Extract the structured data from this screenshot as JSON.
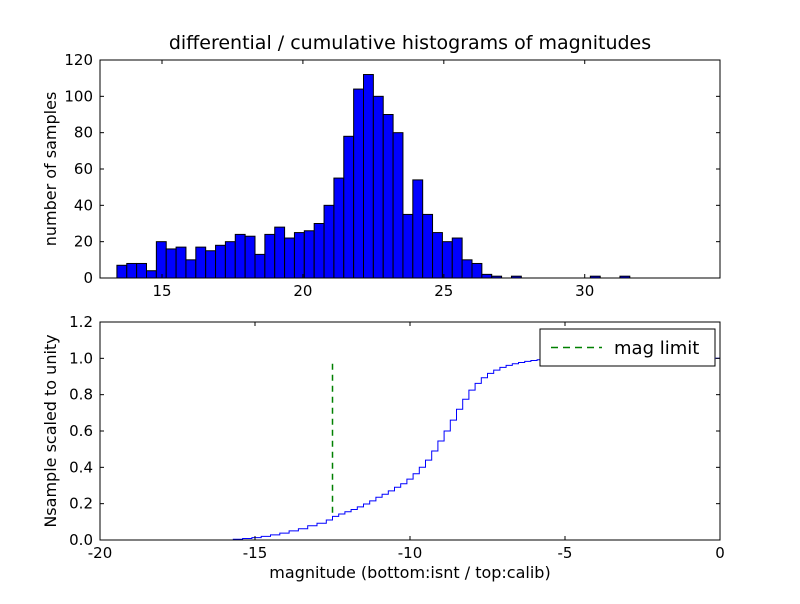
{
  "figure": {
    "background": "#ffffff"
  },
  "chart_data": [
    {
      "type": "bar",
      "title": "differential / cumulative histograms of magnitudes",
      "xlabel": "",
      "ylabel": "number of samples",
      "xlim": [
        12.8,
        34.8
      ],
      "ylim": [
        0,
        120
      ],
      "xticks": [
        15,
        20,
        25,
        30
      ],
      "yticks": [
        0,
        20,
        40,
        60,
        80,
        100,
        120
      ],
      "grid": false,
      "bar_color": "#0000ff",
      "bar_edge_color": "#000000",
      "bin_start": 13.4,
      "bin_width": 0.35,
      "counts": [
        7,
        8,
        8,
        4,
        20,
        16,
        17,
        10,
        17,
        15,
        18,
        20,
        24,
        23,
        13,
        24,
        28,
        22,
        25,
        26,
        30,
        40,
        55,
        78,
        104,
        112,
        100,
        90,
        80,
        35,
        54,
        35,
        25,
        20,
        22,
        10,
        8,
        2,
        1,
        0,
        1,
        0,
        0,
        0,
        0,
        0,
        0,
        0,
        1,
        0,
        0,
        1
      ]
    },
    {
      "type": "line",
      "title": "",
      "xlabel": "magnitude (bottom:isnt / top:calib)",
      "ylabel": "Nsample scaled to unity",
      "xlim": [
        -20,
        0
      ],
      "ylim": [
        0,
        1.2
      ],
      "xticks": [
        -20,
        -15,
        -10,
        -5,
        0
      ],
      "yticks": [
        0.0,
        0.2,
        0.4,
        0.6,
        0.8,
        1.0,
        1.2
      ],
      "grid": false,
      "line_color": "#0000ff",
      "step_points": [
        [
          -20,
          0
        ],
        [
          -16.0,
          0
        ],
        [
          -15.7,
          0.004
        ],
        [
          -15.4,
          0.008
        ],
        [
          -15.1,
          0.013
        ],
        [
          -14.8,
          0.02
        ],
        [
          -14.5,
          0.028
        ],
        [
          -14.2,
          0.038
        ],
        [
          -13.9,
          0.05
        ],
        [
          -13.6,
          0.062
        ],
        [
          -13.3,
          0.078
        ],
        [
          -13.0,
          0.092
        ],
        [
          -12.7,
          0.11
        ],
        [
          -12.5,
          0.13
        ],
        [
          -12.3,
          0.143
        ],
        [
          -12.1,
          0.155
        ],
        [
          -11.9,
          0.168
        ],
        [
          -11.7,
          0.182
        ],
        [
          -11.5,
          0.198
        ],
        [
          -11.3,
          0.215
        ],
        [
          -11.1,
          0.235
        ],
        [
          -10.9,
          0.252
        ],
        [
          -10.7,
          0.27
        ],
        [
          -10.5,
          0.29
        ],
        [
          -10.3,
          0.31
        ],
        [
          -10.1,
          0.335
        ],
        [
          -9.9,
          0.365
        ],
        [
          -9.7,
          0.4
        ],
        [
          -9.5,
          0.44
        ],
        [
          -9.3,
          0.49
        ],
        [
          -9.1,
          0.545
        ],
        [
          -8.9,
          0.6
        ],
        [
          -8.7,
          0.66
        ],
        [
          -8.5,
          0.72
        ],
        [
          -8.3,
          0.775
        ],
        [
          -8.1,
          0.825
        ],
        [
          -7.9,
          0.862
        ],
        [
          -7.7,
          0.893
        ],
        [
          -7.5,
          0.917
        ],
        [
          -7.3,
          0.935
        ],
        [
          -7.1,
          0.95
        ],
        [
          -6.9,
          0.961
        ],
        [
          -6.7,
          0.97
        ],
        [
          -6.5,
          0.977
        ],
        [
          -6.3,
          0.983
        ],
        [
          -6.1,
          0.988
        ],
        [
          -5.9,
          0.992
        ],
        [
          -5.7,
          0.995
        ],
        [
          -5.4,
          0.997
        ],
        [
          -5.0,
          0.999
        ],
        [
          -4.5,
          1.0
        ],
        [
          0,
          1.0
        ]
      ],
      "mag_limit_line": {
        "x": -12.5,
        "y0": 0.13,
        "y1": 0.97,
        "color": "#008000",
        "style": "dashed"
      },
      "legend": {
        "label": "mag limit",
        "position": "upper right"
      }
    }
  ]
}
